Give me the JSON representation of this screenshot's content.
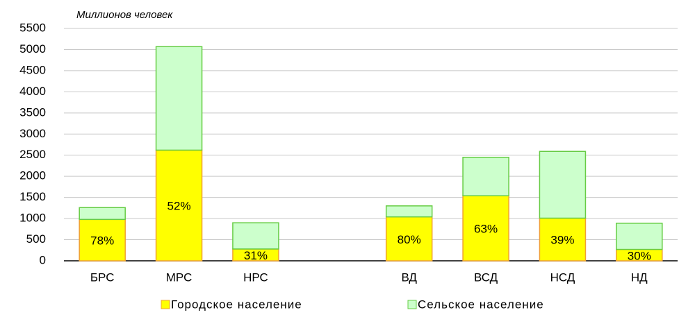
{
  "chart_data": {
    "type": "stacked_bar",
    "y_label": "Миллионов человек",
    "categories": [
      "БРС",
      "МРС",
      "НРС",
      null,
      "ВД",
      "ВСД",
      "НСД",
      "НД"
    ],
    "series": [
      {
        "name": "Городское население",
        "color": "#ffff00",
        "border": "#f0a030",
        "values": [
          980,
          2620,
          280,
          null,
          1040,
          1540,
          1010,
          270
        ]
      },
      {
        "name": "Сельское население",
        "color": "#ccffcc",
        "border": "#66cc44",
        "values": [
          280,
          2450,
          620,
          null,
          260,
          910,
          1580,
          620
        ]
      }
    ],
    "share_labels": [
      "78%",
      "52%",
      "31%",
      null,
      "80%",
      "63%",
      "39%",
      "30%"
    ],
    "ylim": [
      0,
      5500
    ],
    "yticks": [
      0,
      500,
      1000,
      1500,
      2000,
      2500,
      3000,
      3500,
      4000,
      4500,
      5000,
      5500
    ],
    "grid": true
  }
}
